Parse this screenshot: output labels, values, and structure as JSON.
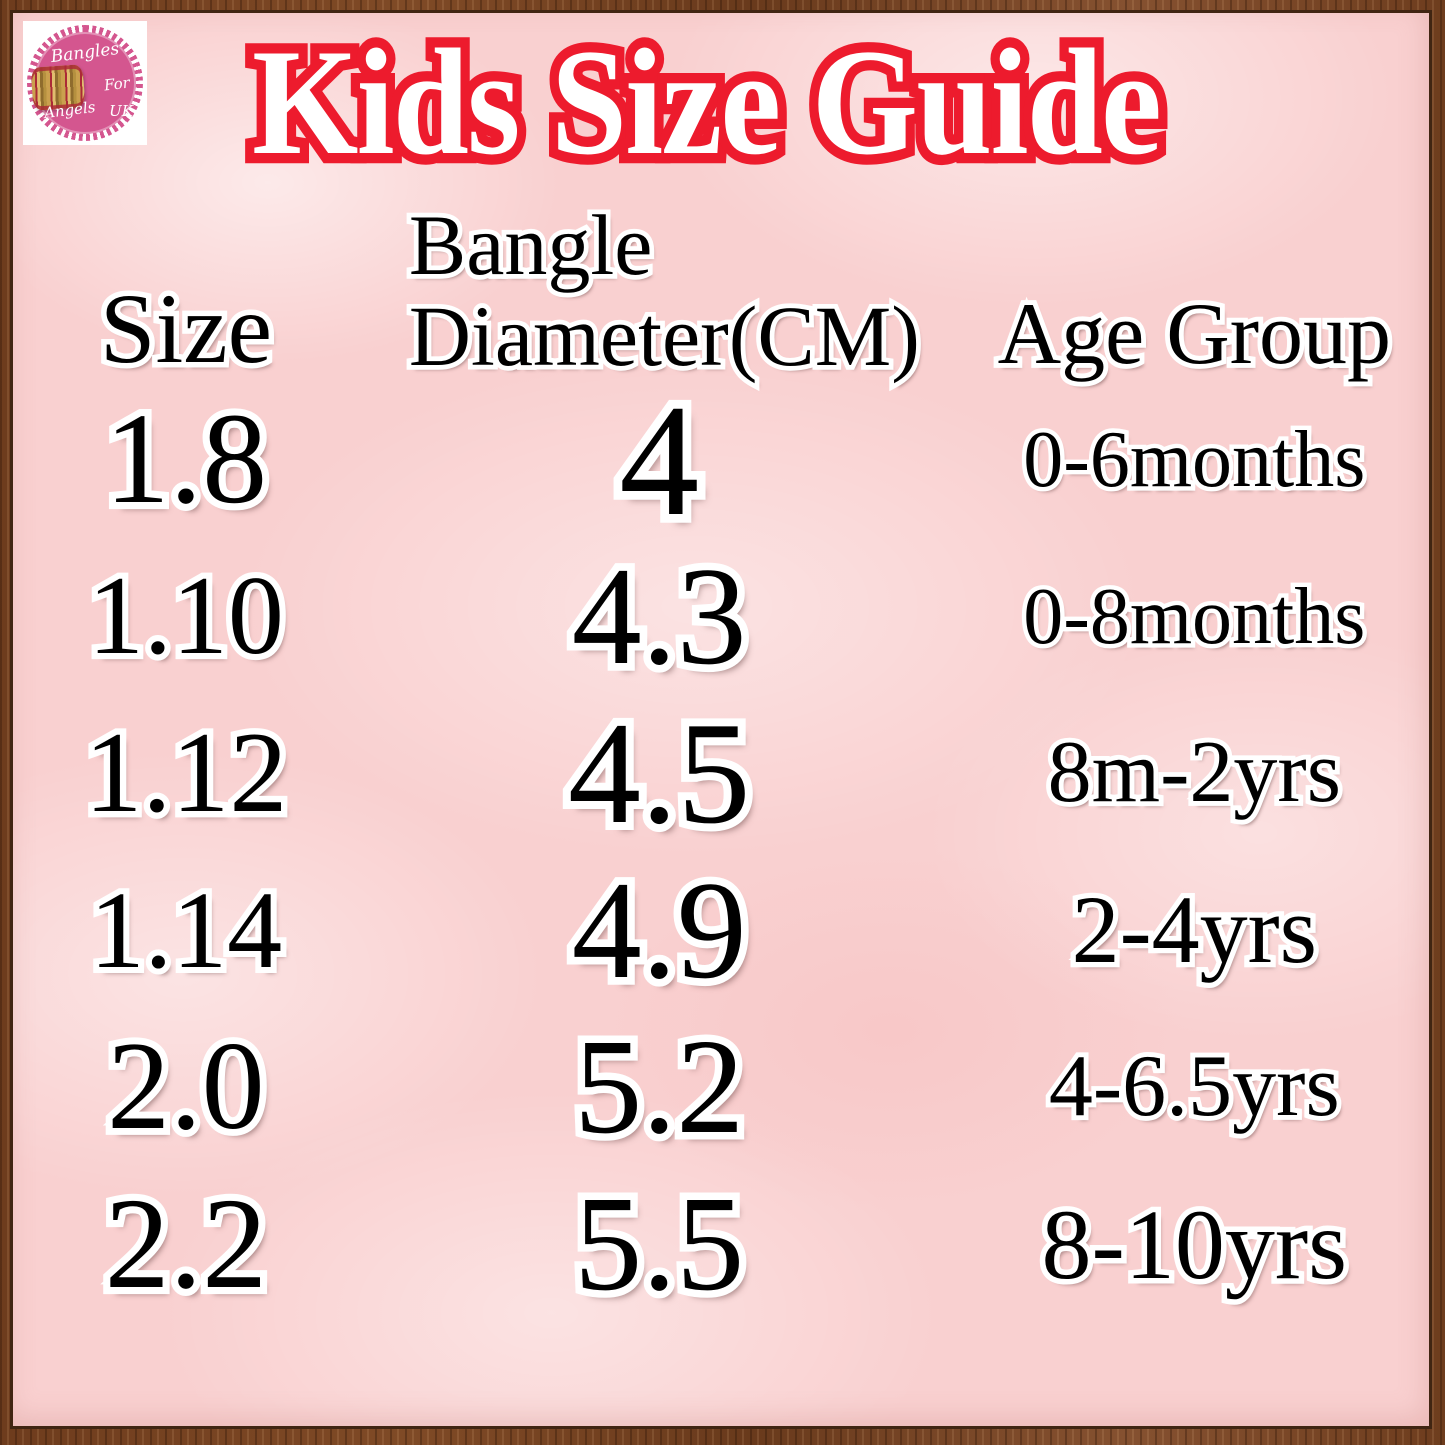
{
  "title": "Kids Size Guide",
  "logo": {
    "word1": "Bangles",
    "word2": "For",
    "word3": "Angels",
    "word4": "UK"
  },
  "table": {
    "header_size": "Size",
    "header_diameter_line1": "Bangle",
    "header_diameter_line2": "Diameter(CM)",
    "header_age": "Age Group",
    "rows": [
      {
        "size": "1.8",
        "diameter": "4",
        "age": "0-6months"
      },
      {
        "size": "1.10",
        "diameter": "4.3",
        "age": "0-8months"
      },
      {
        "size": "1.12",
        "diameter": "4.5",
        "age": "8m-2yrs"
      },
      {
        "size": "1.14",
        "diameter": "4.9",
        "age": "2-4yrs"
      },
      {
        "size": "2.0",
        "diameter": "5.2",
        "age": "4-6.5yrs"
      },
      {
        "size": "2.2",
        "diameter": "5.5",
        "age": "8-10yrs"
      }
    ]
  },
  "chart_data": {
    "type": "table",
    "title": "Kids Size Guide",
    "columns": [
      "Size",
      "Bangle Diameter(CM)",
      "Age Group"
    ],
    "rows": [
      [
        "1.8",
        "4",
        "0-6months"
      ],
      [
        "1.10",
        "4.3",
        "0-8months"
      ],
      [
        "1.12",
        "4.5",
        "8m-2yrs"
      ],
      [
        "1.14",
        "4.9",
        "2-4yrs"
      ],
      [
        "2.0",
        "5.2",
        "4-6.5yrs"
      ],
      [
        "2.2",
        "5.5",
        "8-10yrs"
      ]
    ]
  },
  "colors": {
    "title_red": "#ed1b2d",
    "background_pink": "#f9d0d0",
    "frame_brown": "#74411f",
    "badge_pink": "#d4568f",
    "text_black": "#000000",
    "outline_white": "#ffffff"
  }
}
